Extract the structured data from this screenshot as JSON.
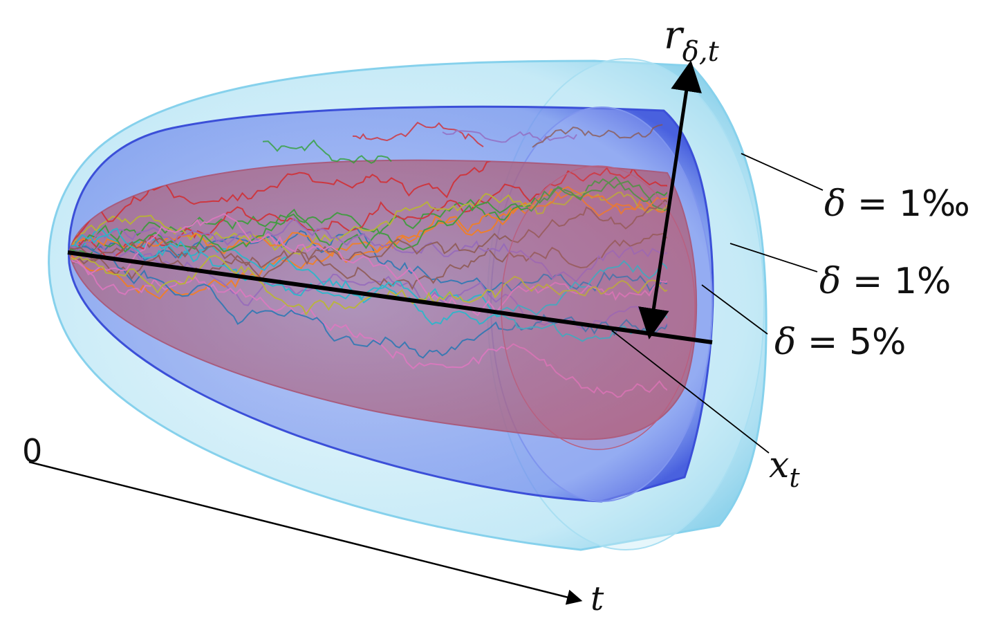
{
  "labels": {
    "radius_symbol": "r",
    "radius_subscript": "δ,t",
    "level_1": {
      "symbol": "δ",
      "eq": " = 1‰"
    },
    "level_2": {
      "symbol": "δ",
      "eq": " = 1%"
    },
    "level_3": {
      "symbol": "δ",
      "eq": " = 5%"
    },
    "mean_symbol": "x",
    "mean_subscript": "t",
    "origin": "0",
    "time_symbol": "t"
  },
  "colors": {
    "outer_shell": "#9fdcf0",
    "middle_shell": "#5a74e8",
    "inner_shell": "#b0607a",
    "axis": "#000000"
  },
  "paths": {
    "count": 18,
    "palette": [
      "#1f77b4",
      "#ff7f0e",
      "#2ca02c",
      "#d62728",
      "#9467bd",
      "#8c564b",
      "#e377c2",
      "#17becf",
      "#bcbd22"
    ]
  }
}
